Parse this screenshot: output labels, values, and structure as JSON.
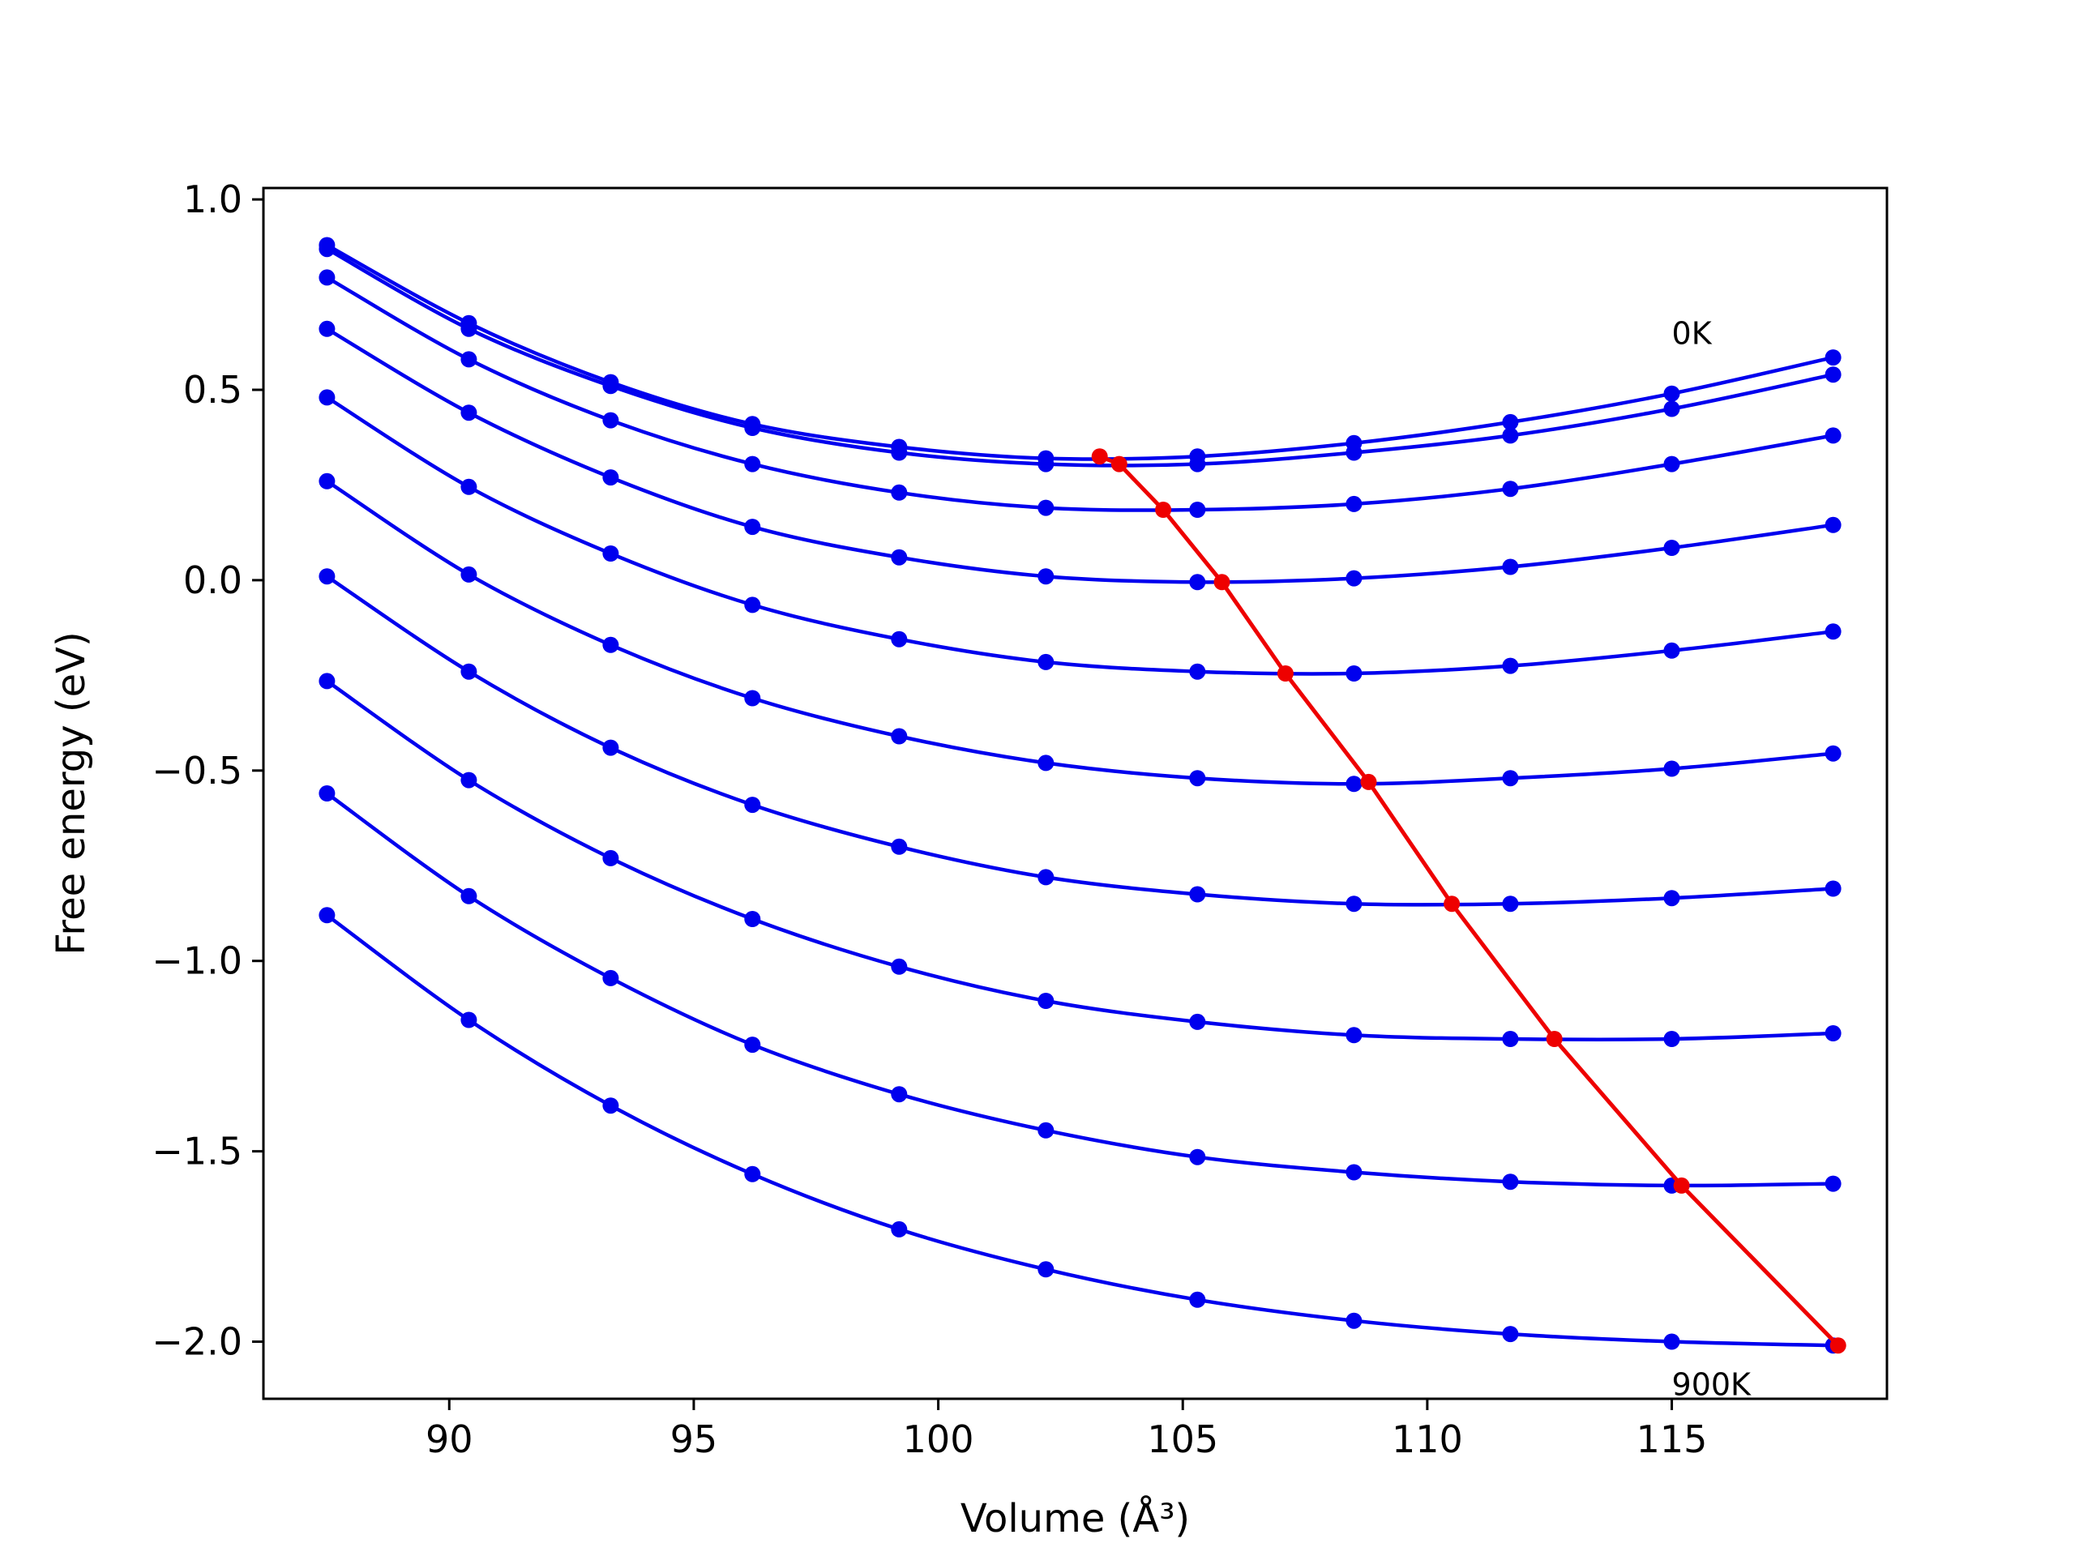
{
  "chart_data": {
    "type": "line",
    "title": "",
    "xlabel": "Volume (Å³)",
    "ylabel": "Free energy (eV)",
    "xlim": [
      86.2,
      119.4
    ],
    "ylim": [
      -2.15,
      1.03
    ],
    "xticks": [
      90,
      95,
      100,
      105,
      110,
      115
    ],
    "xtick_labels": [
      "90",
      "95",
      "100",
      "105",
      "110",
      "115"
    ],
    "yticks": [
      1.0,
      0.5,
      0.0,
      -0.5,
      -1.0,
      -1.5,
      -2.0
    ],
    "ytick_labels": [
      "1.0",
      "0.5",
      "0.0",
      "−0.5",
      "−1.0",
      "−1.5",
      "−2.0"
    ],
    "grid": false,
    "colors": {
      "curves": "#0000ee",
      "minimum_line": "#ee0000"
    },
    "x": [
      87.5,
      90.4,
      93.3,
      96.2,
      99.2,
      102.2,
      105.3,
      108.5,
      111.7,
      115.0,
      118.3
    ],
    "series": [
      {
        "values": [
          0.88,
          0.675,
          0.52,
          0.41,
          0.35,
          0.32,
          0.325,
          0.36,
          0.415,
          0.49,
          0.585
        ]
      },
      {
        "values": [
          0.87,
          0.66,
          0.51,
          0.4,
          0.335,
          0.305,
          0.305,
          0.335,
          0.38,
          0.45,
          0.54
        ]
      },
      {
        "values": [
          0.795,
          0.58,
          0.42,
          0.305,
          0.23,
          0.19,
          0.185,
          0.2,
          0.24,
          0.305,
          0.38
        ]
      },
      {
        "values": [
          0.66,
          0.44,
          0.27,
          0.14,
          0.06,
          0.01,
          -0.005,
          0.005,
          0.035,
          0.085,
          0.145
        ]
      },
      {
        "values": [
          0.48,
          0.245,
          0.07,
          -0.065,
          -0.155,
          -0.215,
          -0.24,
          -0.245,
          -0.225,
          -0.185,
          -0.135
        ]
      },
      {
        "values": [
          0.26,
          0.015,
          -0.17,
          -0.31,
          -0.41,
          -0.48,
          -0.52,
          -0.535,
          -0.52,
          -0.495,
          -0.455
        ]
      },
      {
        "values": [
          0.01,
          -0.24,
          -0.44,
          -0.59,
          -0.7,
          -0.78,
          -0.825,
          -0.85,
          -0.85,
          -0.835,
          -0.81
        ]
      },
      {
        "values": [
          -0.265,
          -0.525,
          -0.73,
          -0.89,
          -1.015,
          -1.105,
          -1.16,
          -1.195,
          -1.205,
          -1.205,
          -1.19
        ]
      },
      {
        "values": [
          -0.56,
          -0.83,
          -1.045,
          -1.22,
          -1.35,
          -1.445,
          -1.515,
          -1.555,
          -1.58,
          -1.59,
          -1.585
        ]
      },
      {
        "values": [
          -0.88,
          -1.155,
          -1.38,
          -1.56,
          -1.705,
          -1.81,
          -1.89,
          -1.945,
          -1.98,
          -2.0,
          -2.01
        ]
      }
    ],
    "minimum_line": {
      "x": [
        103.3,
        103.7,
        104.6,
        105.8,
        107.1,
        108.8,
        110.5,
        112.6,
        115.2,
        118.4
      ],
      "y": [
        0.325,
        0.305,
        0.185,
        -0.005,
        -0.245,
        -0.53,
        -0.85,
        -1.205,
        -1.59,
        -2.01
      ]
    },
    "annotations": [
      {
        "text": "0K",
        "x": 115.0,
        "y": 0.62
      },
      {
        "text": "900K",
        "x": 115.0,
        "y": -2.14
      }
    ]
  }
}
